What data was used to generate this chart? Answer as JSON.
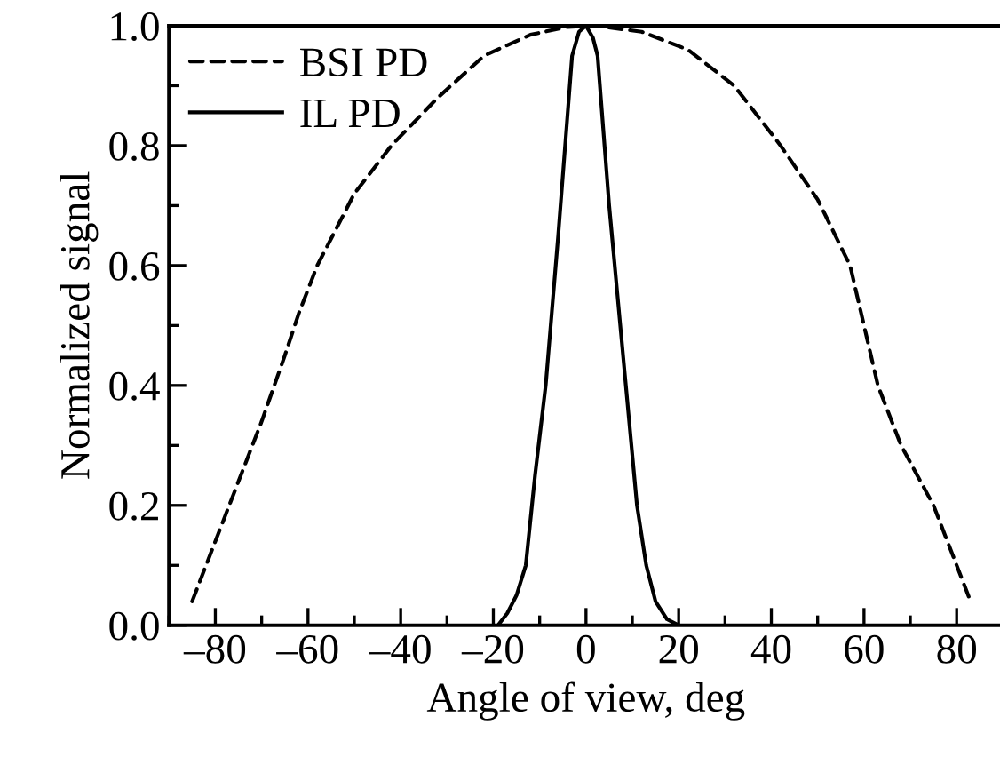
{
  "chart_data": {
    "type": "line",
    "xlabel": "Angle of view, deg",
    "ylabel": "Normalized signal",
    "xlim": [
      -90,
      90
    ],
    "ylim": [
      0,
      1.0
    ],
    "xticks": [
      {
        "value": -80,
        "label": "–80"
      },
      {
        "value": -60,
        "label": "–60"
      },
      {
        "value": -40,
        "label": "–40"
      },
      {
        "value": -20,
        "label": "–20"
      },
      0,
      20,
      40,
      60,
      80
    ],
    "yticks": [
      {
        "value": 0,
        "label": "0.0"
      },
      {
        "value": 0.2,
        "label": "0.2"
      },
      {
        "value": 0.4,
        "label": "0.4"
      },
      {
        "value": 0.6,
        "label": "0.6"
      },
      {
        "value": 0.8,
        "label": "0.8"
      },
      {
        "value": 1.0,
        "label": "1.0"
      }
    ],
    "legend": "top left",
    "grid": false,
    "series": [
      {
        "name": "BSI PD",
        "color": "#000000",
        "line_style": "dashed",
        "x": [
          -85,
          -77,
          -70,
          -65,
          -62,
          -58,
          -50,
          -42,
          -32,
          -22,
          -12,
          -4,
          2,
          12,
          22,
          32,
          42,
          50,
          57,
          60,
          63,
          68,
          75,
          83
        ],
        "values": [
          0.04,
          0.2,
          0.34,
          0.45,
          0.52,
          0.6,
          0.72,
          0.8,
          0.88,
          0.95,
          0.985,
          0.998,
          1.0,
          0.99,
          0.96,
          0.9,
          0.8,
          0.71,
          0.6,
          0.5,
          0.4,
          0.3,
          0.2,
          0.04
        ]
      },
      {
        "name": "IL PD",
        "color": "#000000",
        "line_style": "solid",
        "x": [
          -19,
          -17,
          -15,
          -13,
          -11,
          -8.7,
          -6,
          -3,
          -1.5,
          0,
          1.5,
          2.5,
          5,
          8.6,
          11,
          13,
          15,
          17.5,
          20
        ],
        "values": [
          0,
          0.02,
          0.05,
          0.1,
          0.25,
          0.4,
          0.65,
          0.95,
          0.99,
          1.0,
          0.98,
          0.95,
          0.7,
          0.4,
          0.2,
          0.1,
          0.04,
          0.01,
          0
        ]
      }
    ]
  }
}
